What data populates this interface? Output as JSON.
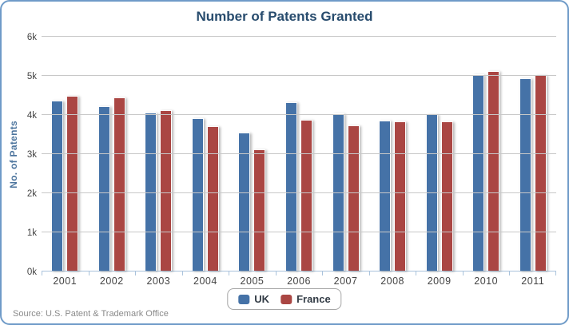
{
  "card": {
    "source": "Source: U.S. Patent & Trademark Office"
  },
  "colors": {
    "border": "#6f9bc8",
    "title": "#274b6d",
    "axis_title": "#4d759e",
    "tick_label": "#444444",
    "grid": "#c8c8c8",
    "axis_line": "#aac3dc",
    "source": "#8a8a8a",
    "uk": "#4572a7",
    "france": "#aa4643"
  },
  "chart_data": {
    "type": "bar",
    "title": "Number of Patents Granted",
    "xlabel": "",
    "ylabel": "No. of Patents",
    "categories": [
      "2001",
      "2002",
      "2003",
      "2004",
      "2005",
      "2006",
      "2007",
      "2008",
      "2009",
      "2010",
      "2011"
    ],
    "series": [
      {
        "name": "UK",
        "color": "#4572a7",
        "values": [
          4350,
          4200,
          4040,
          3890,
          3540,
          4310,
          4030,
          3830,
          4010,
          5030,
          4920
        ]
      },
      {
        "name": "France",
        "color": "#aa4643",
        "values": [
          4460,
          4420,
          4110,
          3690,
          3100,
          3850,
          3710,
          3820,
          3810,
          5100,
          5000
        ]
      }
    ],
    "ylim": [
      0,
      6000
    ],
    "yticks": [
      {
        "value": 0,
        "label": "0k"
      },
      {
        "value": 1000,
        "label": "1k"
      },
      {
        "value": 2000,
        "label": "2k"
      },
      {
        "value": 3000,
        "label": "3k"
      },
      {
        "value": 4000,
        "label": "4k"
      },
      {
        "value": 5000,
        "label": "5k"
      },
      {
        "value": 6000,
        "label": "6k"
      }
    ],
    "grid": true,
    "legend_position": "bottom"
  }
}
